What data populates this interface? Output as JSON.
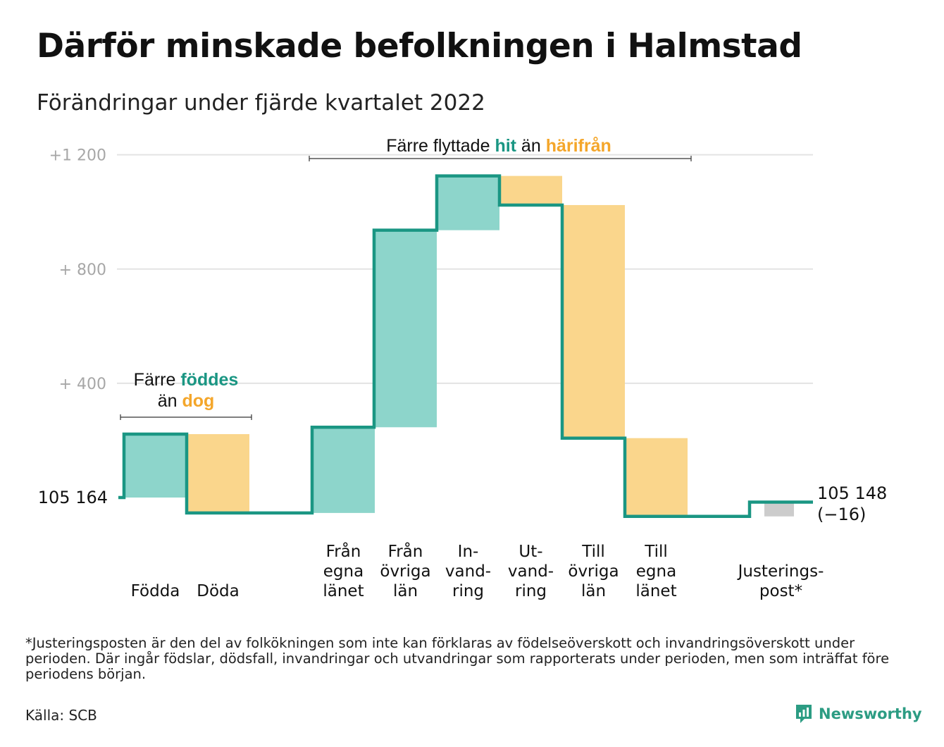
{
  "title": "Därför minskade befolkningen i Halmstad",
  "subtitle": "Förändringar under fjärde kvartalet 2022",
  "colors": {
    "inflow": "#8dd5cb",
    "outflow": "#fad68c",
    "adjustment": "#cccccc",
    "line": "#1a9683",
    "teal_text": "#1a9683",
    "orange_text": "#f4a62a",
    "grid": "#e3e3e3",
    "tick": "#a7a7a7"
  },
  "chart_data": {
    "type": "waterfall",
    "start_value": 105164,
    "start_label": "105 164",
    "end_label": "105 148",
    "end_change": "(−16)",
    "ylim": [
      -80,
      1250
    ],
    "yticks": [
      {
        "value": 400,
        "label": "+ 400"
      },
      {
        "value": 800,
        "label": "+ 800"
      },
      {
        "value": 1200,
        "label": "+1 200"
      }
    ],
    "bars": [
      {
        "id": "fodda",
        "lines": [
          "Födda"
        ],
        "value": 222,
        "kind": "in"
      },
      {
        "id": "doda",
        "lines": [
          "Döda"
        ],
        "value": -276,
        "kind": "out"
      },
      {
        "id": "fran-egna",
        "lines": [
          "Från",
          "egna",
          "länet"
        ],
        "value": 300,
        "kind": "in"
      },
      {
        "id": "fran-ovriga",
        "lines": [
          "Från",
          "övriga",
          "län"
        ],
        "value": 690,
        "kind": "in"
      },
      {
        "id": "invandring",
        "lines": [
          "In-",
          "vand-",
          "ring"
        ],
        "value": 190,
        "kind": "in"
      },
      {
        "id": "utvandring",
        "lines": [
          "Ut-",
          "vand-",
          "ring"
        ],
        "value": -102,
        "kind": "out"
      },
      {
        "id": "till-ovriga",
        "lines": [
          "Till",
          "övriga",
          "län"
        ],
        "value": -816,
        "kind": "out"
      },
      {
        "id": "till-egna",
        "lines": [
          "Till",
          "egna",
          "länet"
        ],
        "value": -274,
        "kind": "out"
      },
      {
        "id": "justering",
        "lines": [
          "Justerings-",
          "post*"
        ],
        "value": 50,
        "kind": "adj"
      }
    ],
    "annotations": {
      "births": {
        "line1": "Färre ",
        "hl1": "föddes",
        "line2": "än ",
        "hl2": "dog"
      },
      "moves": {
        "text1": "Färre flyttade ",
        "hl1": "hit",
        "text2": " än ",
        "hl2": "härifrån"
      }
    }
  },
  "footnote": "*Justeringsposten är den del av folkökningen som inte kan förklaras av födelseöverskott och invandringsöverskott under perioden. Där ingår födslar, dödsfall, invandringar och utvandringar som rapporterats under perioden, men som inträffat före periodens början.",
  "source": "Källa: SCB",
  "brand": "Newsworthy"
}
